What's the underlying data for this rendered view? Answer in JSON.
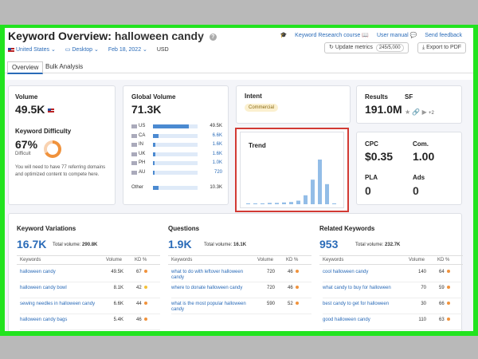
{
  "header": {
    "title": "Keyword Overview:",
    "keyword": "halloween candy",
    "info_icon": "?",
    "links": [
      "Keyword Research course",
      "User manual",
      "Send feedback"
    ],
    "filters": {
      "country": "United States",
      "device": "Desktop",
      "date": "Feb 18, 2022",
      "currency": "USD"
    },
    "update_label": "Update metrics",
    "update_count": "245/5,000",
    "export_label": "Export to PDF"
  },
  "tabs": [
    "Overview",
    "Bulk Analysis"
  ],
  "volume": {
    "label": "Volume",
    "value": "49.5K"
  },
  "difficulty": {
    "label": "Keyword Difficulty",
    "value": "67%",
    "level": "Difficult",
    "percent": 67,
    "note": "You will need to have 77 referring domains and optimized content to compete here."
  },
  "global": {
    "label": "Global Volume",
    "value": "71.3K",
    "rows": [
      {
        "code": "US",
        "value": "49.5K",
        "fill": 0.8
      },
      {
        "code": "CA",
        "value": "6.6K",
        "fill": 0.12
      },
      {
        "code": "IN",
        "value": "1.6K",
        "fill": 0.05
      },
      {
        "code": "UK",
        "value": "1.6K",
        "fill": 0.05
      },
      {
        "code": "PH",
        "value": "1.0K",
        "fill": 0.04
      },
      {
        "code": "AU",
        "value": "720",
        "fill": 0.03
      }
    ],
    "other": {
      "code": "Other",
      "value": "10.3K",
      "fill": 0.12
    }
  },
  "intent": {
    "label": "Intent",
    "value": "Commercial"
  },
  "trend": {
    "label": "Trend",
    "values": [
      0.02,
      0.02,
      0.02,
      0.03,
      0.03,
      0.04,
      0.05,
      0.08,
      0.2,
      0.55,
      1.0,
      0.45,
      0.02
    ]
  },
  "results": {
    "label": "Results",
    "value": "191.0M",
    "sf_label": "SF",
    "sf_plus": "+2"
  },
  "cpc": {
    "label": "CPC",
    "value": "$0.35",
    "com_label": "Com.",
    "com_value": "1.00",
    "pla_label": "PLA",
    "pla_value": "0",
    "ads_label": "Ads",
    "ads_value": "0"
  },
  "variations": {
    "label": "Keyword Variations",
    "count": "16.7K",
    "total_label": "Total volume:",
    "total": "290.8K",
    "cols": [
      "Keywords",
      "Volume",
      "KD %"
    ],
    "rows": [
      {
        "kw": "halloween candy",
        "vol": "49.5K",
        "kd": "67",
        "dot": "orange"
      },
      {
        "kw": "halloween candy bowl",
        "vol": "8.1K",
        "kd": "42",
        "dot": "yellow"
      },
      {
        "kw": "sewing needles in halloween candy",
        "vol": "6.6K",
        "kd": "44",
        "dot": "orange"
      },
      {
        "kw": "halloween candy bags",
        "vol": "5.4K",
        "kd": "46",
        "dot": "orange"
      }
    ]
  },
  "questions": {
    "label": "Questions",
    "count": "1.9K",
    "total_label": "Total volume:",
    "total": "16.1K",
    "cols": [
      "Keywords",
      "Volume",
      "KD %"
    ],
    "rows": [
      {
        "kw": "what to do with leftover halloween candy",
        "vol": "720",
        "kd": "46",
        "dot": "orange"
      },
      {
        "kw": "where to donate halloween candy",
        "vol": "720",
        "kd": "46",
        "dot": "orange"
      },
      {
        "kw": "what is the most popular halloween candy",
        "vol": "590",
        "kd": "52",
        "dot": "orange"
      }
    ]
  },
  "related": {
    "label": "Related Keywords",
    "count": "953",
    "total_label": "Total volume:",
    "total": "232.7K",
    "cols": [
      "Keywords",
      "Volume",
      "KD %"
    ],
    "rows": [
      {
        "kw": "cool halloween candy",
        "vol": "140",
        "kd": "64",
        "dot": "orange"
      },
      {
        "kw": "what candy to buy for halloween",
        "vol": "70",
        "kd": "59",
        "dot": "orange"
      },
      {
        "kw": "best candy to get for halloween",
        "vol": "30",
        "kd": "66",
        "dot": "orange"
      },
      {
        "kw": "good halloween candy",
        "vol": "110",
        "kd": "63",
        "dot": "orange"
      }
    ]
  }
}
